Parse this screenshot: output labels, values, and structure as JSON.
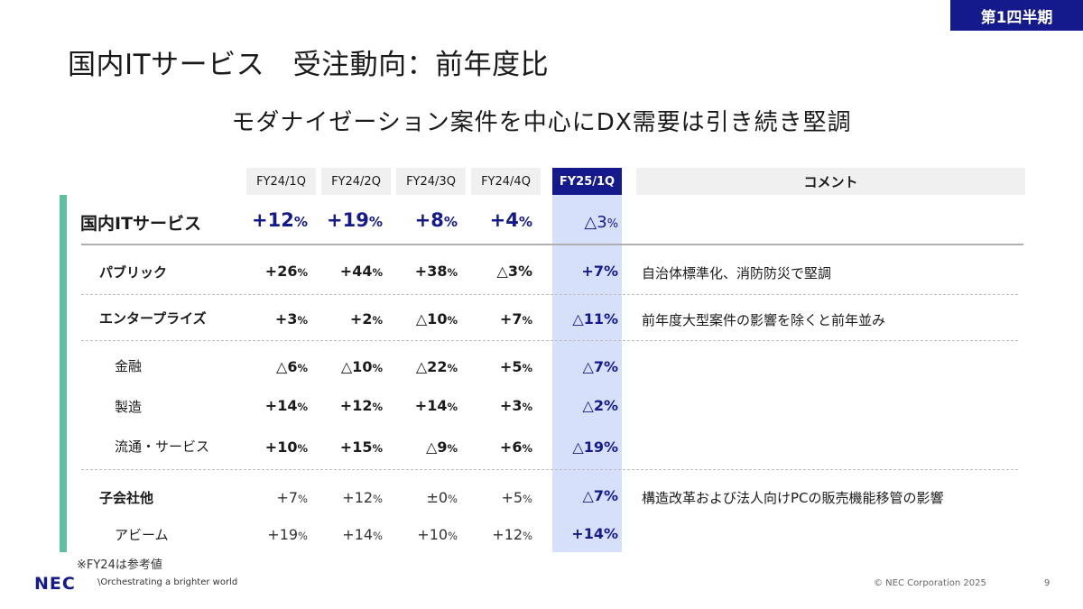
{
  "badge": "第1四半期",
  "title": "国内ITサービス　受注動向：前年度比",
  "subtitle": "モダナイゼーション案件を中心にDX需要は引き続き堅調",
  "columns": [
    "FY24/1Q",
    "FY24/2Q",
    "FY24/3Q",
    "FY24/4Q",
    "FY25/1Q"
  ],
  "comment_header": "コメント",
  "unit": "%",
  "rows": {
    "total": {
      "label": "国内ITサービス",
      "values": [
        "+12",
        "+19",
        "+8",
        "+4",
        "△3"
      ]
    },
    "public": {
      "label": "パブリック",
      "values": [
        "+26",
        "+44",
        "+38",
        "△3%",
        "+7%"
      ],
      "comment": "自治体標準化、消防防災で堅調"
    },
    "enterprise": {
      "label": "エンタープライズ",
      "values": [
        "+3",
        "+2",
        "△10",
        "+7",
        "△11%"
      ],
      "comment": "前年度大型案件の影響を除くと前年並み"
    },
    "finance": {
      "label": "金融",
      "values": [
        "△6",
        "△10",
        "△22",
        "+5",
        "△7%"
      ]
    },
    "manufacturing": {
      "label": "製造",
      "values": [
        "+14",
        "+12",
        "+14",
        "+3",
        "△2%"
      ]
    },
    "distribution": {
      "label": "流通・サービス",
      "values": [
        "+10",
        "+15",
        "△9",
        "+6",
        "△19%"
      ]
    },
    "subsidiaries": {
      "label": "子会社他",
      "values": [
        "+7",
        "+12",
        "±0",
        "+5",
        "△7%"
      ],
      "comment": "構造改革および法人向けPCの販売機能移管の影響"
    },
    "abeam": {
      "label": "アビーム",
      "values": [
        "+19",
        "+14",
        "+10",
        "+12",
        "+14%"
      ]
    }
  },
  "footnote": "※FY24は参考値",
  "logo": "NEC",
  "tagline": "\\Orchestrating a brighter world",
  "copyright": "© NEC Corporation 2025",
  "page_number": "9"
}
